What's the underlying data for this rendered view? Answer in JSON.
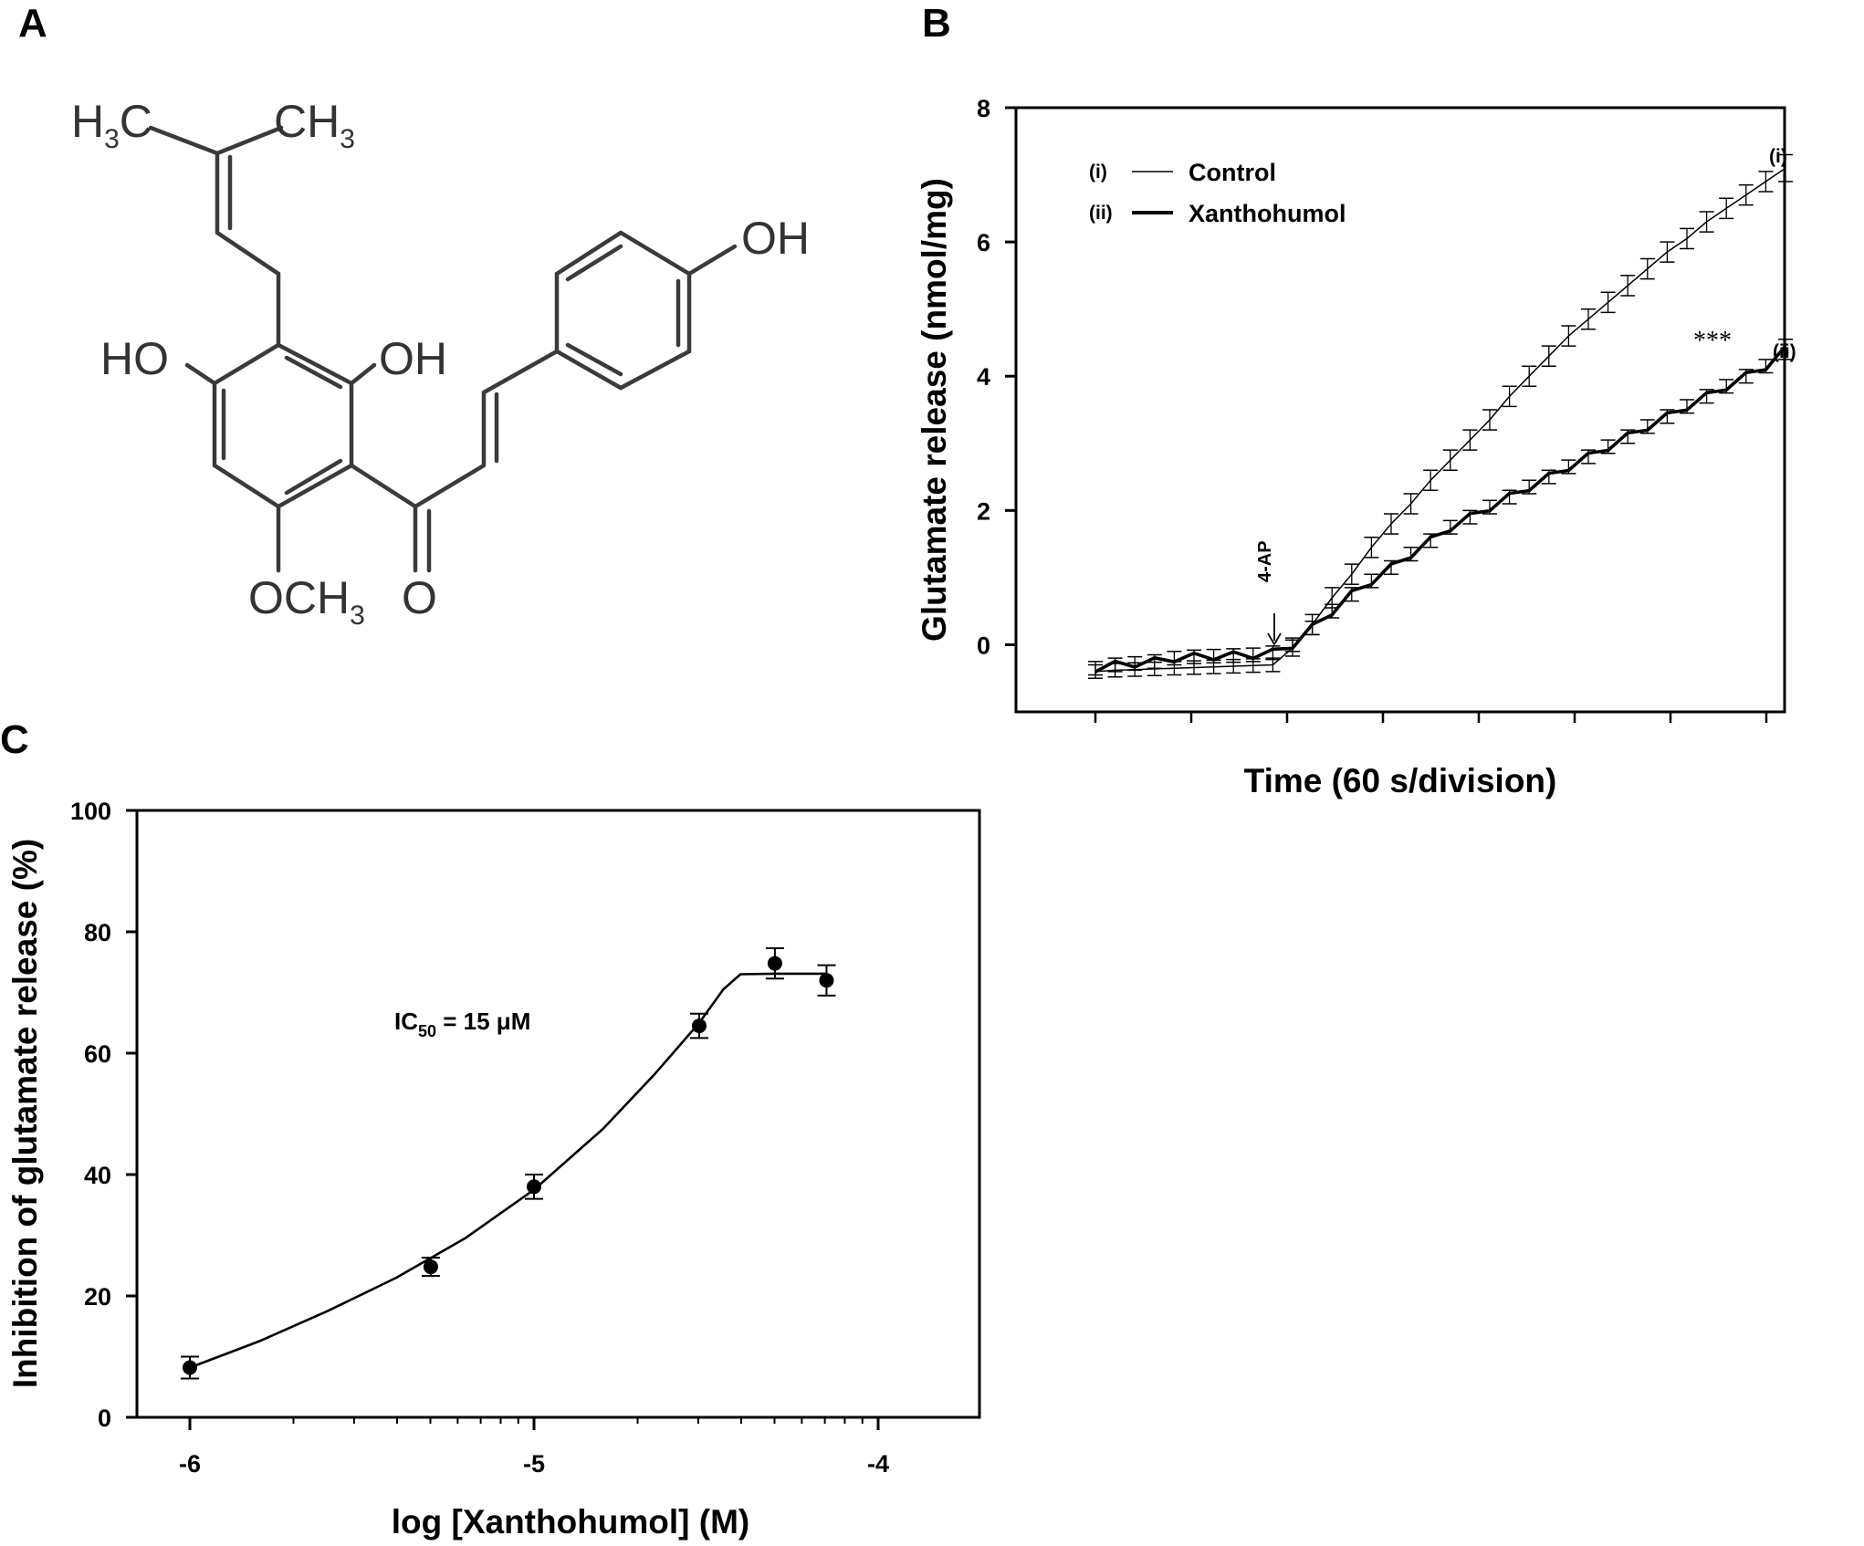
{
  "panels": {
    "a": {
      "label": "A"
    },
    "b": {
      "label": "B"
    },
    "c": {
      "label": "C"
    }
  },
  "structure": {
    "labels": {
      "h3c": "H3C",
      "ch3": "CH3",
      "oh_top": "OH",
      "ho_left": "HO",
      "oh_mid": "OH",
      "och3": "OCH3",
      "o": "O"
    }
  },
  "chart_data": [
    {
      "id": "B",
      "type": "line",
      "title": "",
      "xlabel": "Time (60 s/division)",
      "ylabel": "Glutamate release (nmol/mg)",
      "ylim": [
        -1,
        8
      ],
      "yticks": [
        0,
        2,
        4,
        6,
        8
      ],
      "xlim": [
        0,
        9.2
      ],
      "x_unit": "min",
      "x_ticks_count": 8,
      "x_ticks_labelled": false,
      "grid": false,
      "legend": {
        "placement": "top-left",
        "entries": [
          {
            "key": "(i)",
            "label": "Control"
          },
          {
            "key": "(ii)",
            "label": "Xanthohumol"
          }
        ]
      },
      "annotations": [
        {
          "text": "4-AP",
          "x": 1.9,
          "y": -0.1,
          "note_type": "arrow"
        },
        {
          "text": "***",
          "x": 6.95,
          "y": 4.55,
          "note_type": "significance"
        }
      ],
      "series": [
        {
          "key": "(i)",
          "name": "Control",
          "line_weight": "thin",
          "end_label": "(i)",
          "x": [
            0.0,
            0.2,
            0.4,
            0.6,
            0.8,
            1.0,
            1.2,
            1.4,
            1.6,
            1.8,
            2.0,
            2.2,
            2.4,
            2.6,
            2.8,
            3.0,
            3.2,
            3.4,
            3.6,
            3.8,
            4.0,
            4.2,
            4.4,
            4.6,
            4.8,
            5.0,
            5.2,
            5.4,
            5.6,
            5.8,
            6.0,
            6.2,
            6.4,
            6.6,
            6.8,
            7.0
          ],
          "y": [
            -0.4,
            -0.38,
            -0.37,
            -0.36,
            -0.35,
            -0.34,
            -0.33,
            -0.32,
            -0.31,
            -0.3,
            -0.05,
            0.3,
            0.7,
            1.05,
            1.45,
            1.8,
            2.1,
            2.45,
            2.75,
            3.05,
            3.35,
            3.7,
            4.0,
            4.3,
            4.6,
            4.85,
            5.1,
            5.35,
            5.6,
            5.85,
            6.05,
            6.3,
            6.5,
            6.7,
            6.9,
            7.1
          ],
          "error": [
            0.1,
            0.1,
            0.1,
            0.1,
            0.1,
            0.1,
            0.1,
            0.1,
            0.1,
            0.1,
            0.12,
            0.15,
            0.15,
            0.15,
            0.15,
            0.15,
            0.15,
            0.15,
            0.15,
            0.15,
            0.15,
            0.15,
            0.15,
            0.15,
            0.15,
            0.15,
            0.15,
            0.15,
            0.15,
            0.15,
            0.15,
            0.15,
            0.15,
            0.15,
            0.15,
            0.2
          ]
        },
        {
          "key": "(ii)",
          "name": "Xanthohumol",
          "line_weight": "thick",
          "end_label": "(ii)",
          "x": [
            0.0,
            0.2,
            0.4,
            0.6,
            0.8,
            1.0,
            1.2,
            1.4,
            1.6,
            1.8,
            2.0,
            2.2,
            2.4,
            2.6,
            2.8,
            3.0,
            3.2,
            3.4,
            3.6,
            3.8,
            4.0,
            4.2,
            4.4,
            4.6,
            4.8,
            5.0,
            5.2,
            5.4,
            5.6,
            5.8,
            6.0,
            6.2,
            6.4,
            6.6,
            6.8,
            7.0
          ],
          "y": [
            -0.35,
            -0.3,
            -0.28,
            -0.25,
            -0.2,
            -0.18,
            -0.17,
            -0.16,
            -0.15,
            -0.12,
            0.0,
            0.25,
            0.5,
            0.75,
            0.95,
            1.15,
            1.35,
            1.55,
            1.75,
            1.9,
            2.05,
            2.2,
            2.35,
            2.5,
            2.65,
            2.8,
            2.95,
            3.1,
            3.25,
            3.4,
            3.55,
            3.7,
            3.85,
            4.0,
            4.15,
            4.4
          ],
          "error": [
            0.1,
            0.1,
            0.1,
            0.1,
            0.1,
            0.1,
            0.1,
            0.1,
            0.1,
            0.1,
            0.1,
            0.1,
            0.1,
            0.1,
            0.1,
            0.1,
            0.1,
            0.1,
            0.1,
            0.1,
            0.1,
            0.1,
            0.1,
            0.1,
            0.1,
            0.1,
            0.1,
            0.1,
            0.1,
            0.1,
            0.1,
            0.1,
            0.1,
            0.1,
            0.1,
            0.15
          ]
        }
      ]
    },
    {
      "id": "C",
      "type": "scatter",
      "title": "",
      "xlabel": "log [Xanthohumol] (M)",
      "ylabel": "Inhibition of glutamate release (%)",
      "xlim": [
        -6.15,
        -3.7
      ],
      "ylim": [
        0,
        100
      ],
      "xticks": [
        -6,
        -5,
        -4
      ],
      "yticks": [
        0,
        20,
        40,
        60,
        80,
        100
      ],
      "grid": false,
      "annotation": {
        "main": "IC",
        "sub": "50",
        "tail": " = 15 μM"
      },
      "points": {
        "x": [
          -6.0,
          -5.3,
          -5.0,
          -4.52,
          -4.3,
          -4.15
        ],
        "y": [
          8.2,
          24.8,
          38.0,
          64.5,
          74.8,
          72.0
        ],
        "error": [
          1.8,
          1.5,
          2.0,
          2.0,
          2.5,
          2.5
        ]
      },
      "fit_curve": {
        "x": [
          -6.0,
          -5.8,
          -5.6,
          -5.4,
          -5.2,
          -5.0,
          -4.8,
          -4.65,
          -4.52,
          -4.45,
          -4.4,
          -4.3,
          -4.2,
          -4.15
        ],
        "y": [
          8.2,
          12.5,
          17.5,
          23.0,
          29.5,
          37.5,
          47.5,
          56.5,
          65.0,
          70.5,
          73.0,
          73.1,
          73.1,
          73.1
        ]
      }
    }
  ]
}
